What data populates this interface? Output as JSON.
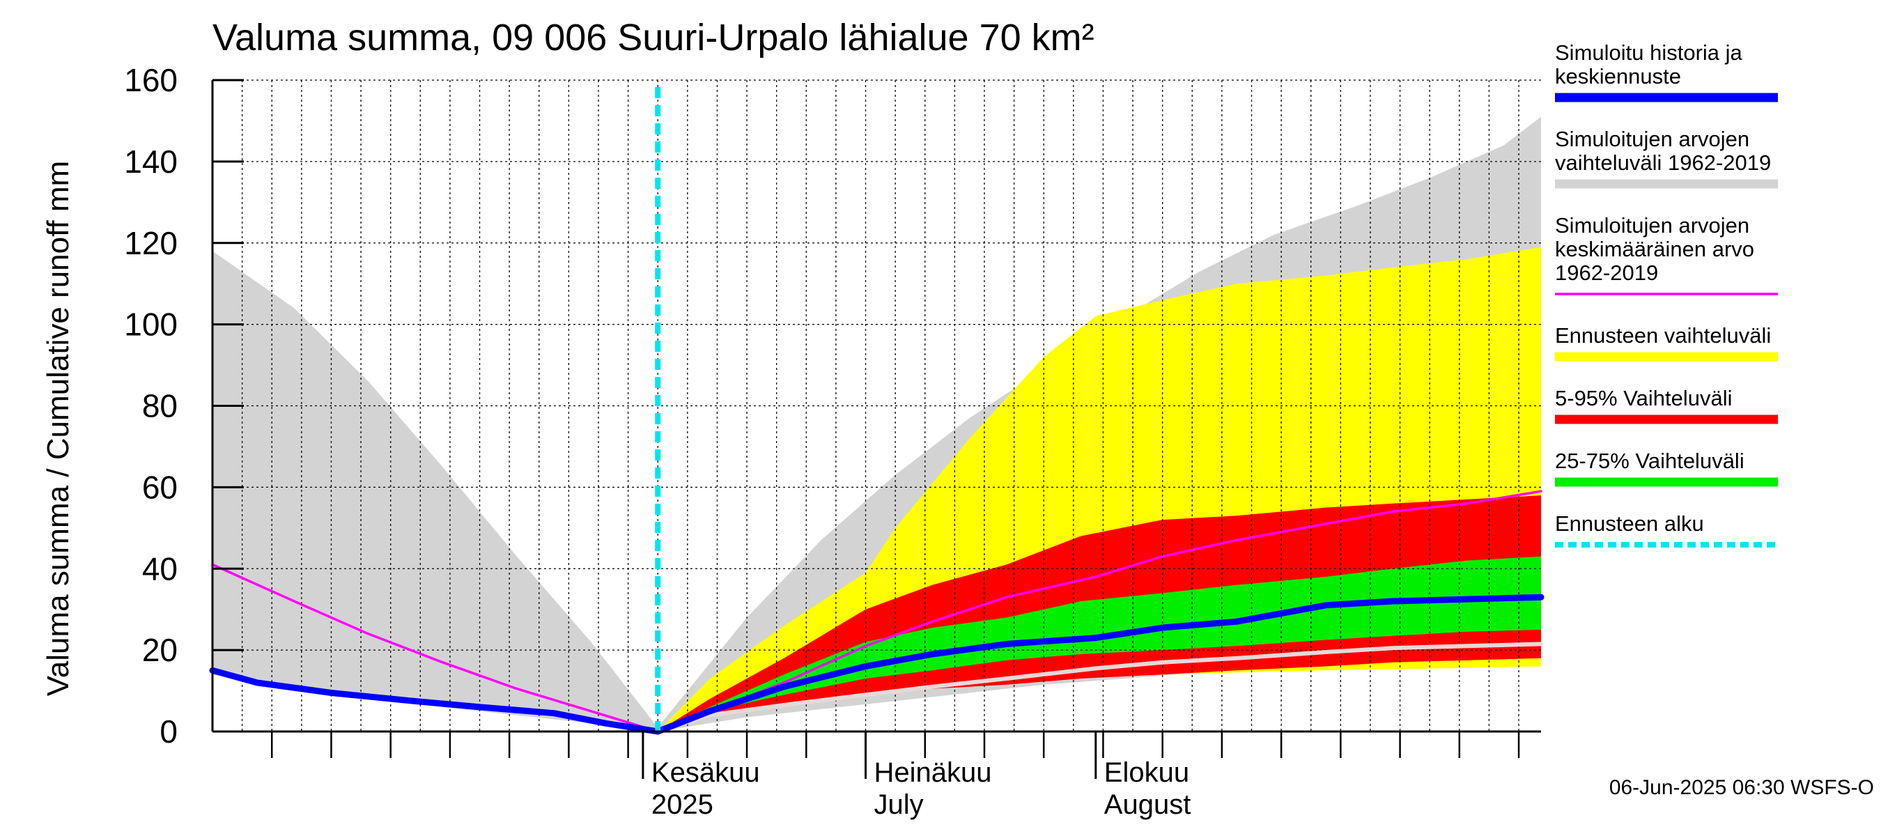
{
  "chart_data": {
    "type": "area",
    "title": "Valuma summa, 09 006 Suuri-Urpalo lähialue 70 km²",
    "ylabel": "Valuma summa / Cumulative runoff    mm",
    "ylim": [
      0,
      160
    ],
    "yticks": [
      0,
      20,
      40,
      60,
      80,
      100,
      120,
      140,
      160
    ],
    "xlim": [
      "2025-04-04",
      "2025-09-30"
    ],
    "month_labels": [
      {
        "date": "2025-06-01",
        "line1": "Kesäkuu",
        "line2": "2025"
      },
      {
        "date": "2025-07-01",
        "line1": "Heinäkuu",
        "line2": "July"
      },
      {
        "date": "2025-08-01",
        "line1": "Elokuu",
        "line2": "August"
      }
    ],
    "forecast_start": "2025-06-03",
    "footer": "06-Jun-2025 06:30 WSFS-O",
    "colors": {
      "history": "#0000ff",
      "range_hist": "#d3d3d3",
      "mean_hist": "#ff00ff",
      "forecast_range": "#ffff00",
      "p5_95": "#ff0000",
      "p25_75": "#00ee00",
      "forecast_start": "#00e5ee",
      "median_light": "#e8d8d8"
    },
    "legend": [
      {
        "lines": [
          "Simuloitu historia ja",
          "keskiennuste"
        ],
        "color": "#0000ff",
        "style": "solid"
      },
      {
        "lines": [
          "Simuloitujen arvojen",
          "vaihteluväli 1962-2019"
        ],
        "color": "#d3d3d3",
        "style": "solid"
      },
      {
        "lines": [
          "Simuloitujen arvojen",
          "keskimääräinen arvo",
          "   1962-2019"
        ],
        "color": "#ff00ff",
        "style": "thin"
      },
      {
        "lines": [
          "Ennusteen vaihteluväli"
        ],
        "color": "#ffff00",
        "style": "solid"
      },
      {
        "lines": [
          "5-95% Vaihteluväli"
        ],
        "color": "#ff0000",
        "style": "solid"
      },
      {
        "lines": [
          "25-75% Vaihteluväli"
        ],
        "color": "#00ee00",
        "style": "solid"
      },
      {
        "lines": [
          "Ennusteen alku"
        ],
        "color": "#00e5ee",
        "style": "dashed"
      }
    ],
    "series": {
      "hist_range": {
        "x": [
          "2025-04-04",
          "2025-04-15",
          "2025-04-25",
          "2025-05-05",
          "2025-05-15",
          "2025-05-25",
          "2025-06-03",
          "2025-06-15",
          "2025-06-25",
          "2025-07-05",
          "2025-07-15",
          "2025-07-25",
          "2025-08-05",
          "2025-08-15",
          "2025-08-25",
          "2025-09-05",
          "2025-09-15",
          "2025-09-25",
          "2025-09-30"
        ],
        "upper": [
          118,
          104,
          86,
          65,
          43,
          22,
          1,
          28,
          47,
          63,
          77,
          89,
          102,
          113,
          122,
          129,
          136,
          144,
          151
        ],
        "lower": [
          14,
          10.5,
          8,
          6,
          4,
          2,
          0,
          3.5,
          5.5,
          7.5,
          9.5,
          11.5,
          13,
          14.5,
          15.5,
          16,
          16.5,
          16.8,
          17
        ]
      },
      "forecast_range": {
        "x": [
          "2025-06-03",
          "2025-06-10",
          "2025-06-20",
          "2025-07-01",
          "2025-07-05",
          "2025-07-15",
          "2025-07-25",
          "2025-08-01",
          "2025-08-10",
          "2025-08-20",
          "2025-09-01",
          "2025-09-10",
          "2025-09-20",
          "2025-09-30"
        ],
        "upper": [
          0,
          13,
          26,
          39,
          50,
          72,
          92,
          102,
          106,
          110,
          112,
          114,
          116,
          119
        ],
        "lower": [
          0,
          4,
          7,
          9,
          10,
          11.5,
          12.5,
          13.5,
          14,
          14.5,
          15,
          15.3,
          15.6,
          16
        ]
      },
      "p5_95": {
        "x": [
          "2025-06-03",
          "2025-06-10",
          "2025-06-20",
          "2025-07-01",
          "2025-07-10",
          "2025-07-20",
          "2025-07-30",
          "2025-08-10",
          "2025-08-20",
          "2025-09-01",
          "2025-09-10",
          "2025-09-20",
          "2025-09-30"
        ],
        "upper": [
          0,
          8,
          18,
          30,
          36,
          41,
          48,
          52,
          53,
          55,
          56,
          57,
          58
        ],
        "lower": [
          0,
          4,
          7,
          9.5,
          10.5,
          11.5,
          13,
          14,
          15,
          16,
          17,
          17.5,
          18
        ]
      },
      "p25_75": {
        "x": [
          "2025-06-03",
          "2025-06-10",
          "2025-06-20",
          "2025-07-01",
          "2025-07-10",
          "2025-07-20",
          "2025-07-30",
          "2025-08-10",
          "2025-08-20",
          "2025-09-01",
          "2025-09-10",
          "2025-09-20",
          "2025-09-30"
        ],
        "upper": [
          0,
          6,
          14,
          22,
          25.5,
          28,
          32,
          34,
          36,
          38,
          40,
          42,
          43
        ],
        "lower": [
          0,
          5,
          9,
          13,
          15,
          17.5,
          19,
          20,
          21,
          22.5,
          23.5,
          24.5,
          25
        ]
      },
      "median_light": {
        "x": [
          "2025-06-03",
          "2025-06-10",
          "2025-06-20",
          "2025-07-01",
          "2025-07-10",
          "2025-07-20",
          "2025-08-01",
          "2025-08-10",
          "2025-08-20",
          "2025-09-01",
          "2025-09-10",
          "2025-09-20",
          "2025-09-30"
        ],
        "y": [
          0,
          4,
          6.5,
          9,
          11,
          13,
          15.5,
          17,
          18,
          19.5,
          20.5,
          21,
          21.5
        ]
      },
      "mean_hist": {
        "x": [
          "2025-04-04",
          "2025-04-15",
          "2025-04-25",
          "2025-05-05",
          "2025-05-15",
          "2025-05-25",
          "2025-06-03",
          "2025-06-10",
          "2025-06-20",
          "2025-07-01",
          "2025-07-10",
          "2025-07-20",
          "2025-08-01",
          "2025-08-10",
          "2025-08-20",
          "2025-09-01",
          "2025-09-10",
          "2025-09-20",
          "2025-09-30"
        ],
        "y": [
          41,
          32,
          24,
          17,
          10.5,
          5,
          0,
          5,
          12,
          21,
          27,
          33,
          38,
          43,
          47,
          51,
          54,
          56,
          59
        ]
      },
      "history_mean_forecast": {
        "x": [
          "2025-04-04",
          "2025-04-10",
          "2025-04-20",
          "2025-05-01",
          "2025-05-10",
          "2025-05-20",
          "2025-05-27",
          "2025-06-03",
          "2025-06-10",
          "2025-06-20",
          "2025-07-01",
          "2025-07-10",
          "2025-07-20",
          "2025-08-01",
          "2025-08-10",
          "2025-08-20",
          "2025-09-01",
          "2025-09-10",
          "2025-09-20",
          "2025-09-30"
        ],
        "y": [
          15,
          12,
          9.5,
          7.5,
          6,
          4.5,
          2,
          0,
          5,
          11,
          16,
          19,
          21.5,
          23,
          25.5,
          27,
          31,
          32,
          32.5,
          33
        ]
      }
    }
  }
}
